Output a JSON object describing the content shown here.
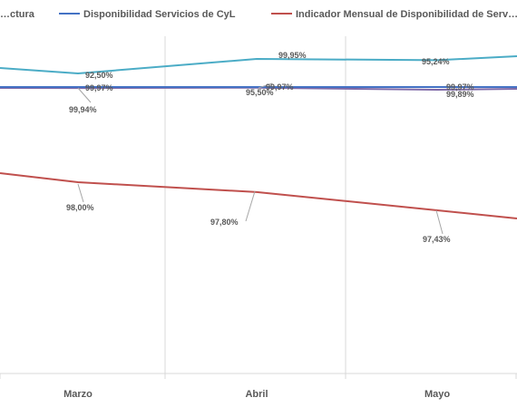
{
  "chart_data": {
    "type": "line",
    "categories": [
      "Marzo",
      "Abril",
      "Mayo"
    ],
    "series": [
      {
        "name": "…ctura",
        "color": "#4bacc6",
        "values": [
          92.5,
          95.5,
          95.24
        ]
      },
      {
        "name": "Disponibilidad Servicios de CyL",
        "color": "#4472c4",
        "values": [
          99.97,
          99.97,
          99.97
        ]
      },
      {
        "name": "",
        "color": "#7f6aa8",
        "values": [
          99.94,
          99.95,
          99.89
        ]
      },
      {
        "name": "Indicador Mensual de Disponibilidad de Serv…",
        "color": "#c0504d",
        "values": [
          98.0,
          97.8,
          97.43
        ]
      }
    ],
    "data_labels": {
      "cyan": [
        "92,50%",
        "95,50%",
        "95,24%"
      ],
      "blue": [
        "99,97%",
        "99,97%",
        "99,97%"
      ],
      "purple": [
        "99,94%",
        "99,95%",
        "99,89%"
      ],
      "red": [
        "98,00%",
        "97,80%",
        "97,43%"
      ]
    },
    "legend_position": "top",
    "gridlines": "vertical"
  }
}
